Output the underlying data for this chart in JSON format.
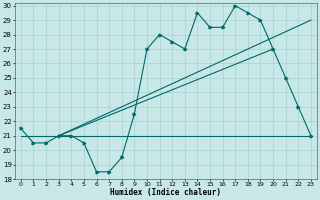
{
  "title": "",
  "xlabel": "Humidex (Indice chaleur)",
  "bg_color": "#c8e8e8",
  "grid_color": "#a8d0d0",
  "line_color": "#006868",
  "xlim": [
    -0.5,
    23.5
  ],
  "ylim": [
    18,
    30.2
  ],
  "xticks": [
    0,
    1,
    2,
    3,
    4,
    5,
    6,
    7,
    8,
    9,
    10,
    11,
    12,
    13,
    14,
    15,
    16,
    17,
    18,
    19,
    20,
    21,
    22,
    23
  ],
  "yticks": [
    18,
    19,
    20,
    21,
    22,
    23,
    24,
    25,
    26,
    27,
    28,
    29,
    30
  ],
  "main_series_x": [
    0,
    1,
    2,
    3,
    4,
    5,
    6,
    7,
    8,
    9,
    10,
    11,
    12,
    13,
    14,
    15,
    16,
    17,
    18,
    19,
    20,
    21,
    22,
    23
  ],
  "main_series_y": [
    21.5,
    20.5,
    20.5,
    21.0,
    21.0,
    20.5,
    18.5,
    18.5,
    19.5,
    22.5,
    27.0,
    28.0,
    27.5,
    27.0,
    29.5,
    28.5,
    28.5,
    30.0,
    29.5,
    29.0,
    27.0,
    25.0,
    23.0,
    21.0
  ],
  "line1_x": [
    0,
    23
  ],
  "line1_y": [
    21.0,
    21.0
  ],
  "line2_x": [
    3,
    23
  ],
  "line2_y": [
    21.0,
    29.0
  ],
  "line3_x": [
    3,
    20
  ],
  "line3_y": [
    21.0,
    27.0
  ]
}
